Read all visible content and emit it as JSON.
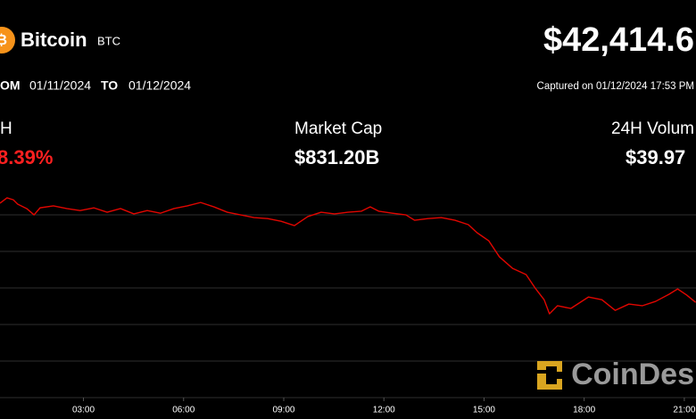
{
  "header": {
    "name": "Bitcoin",
    "symbol": "BTC",
    "price": "$42,414.6",
    "from_label": "OM",
    "from_date": "01/11/2024",
    "to_label": "TO",
    "to_date": "01/12/2024",
    "captured": "Captured on 01/12/2024 17:53 PM"
  },
  "stats": [
    {
      "label": "H",
      "value": "8.39%"
    },
    {
      "label": "Market Cap",
      "value": "$831.20B"
    },
    {
      "label": "24H Volum",
      "value": "$39.97"
    }
  ],
  "brand": "CoinDes",
  "chart_data": {
    "type": "line",
    "color": "#e10600",
    "x": [
      0.5,
      0.71,
      0.9,
      1.03,
      1.3,
      1.52,
      1.7,
      2.1,
      2.5,
      2.9,
      3.31,
      3.71,
      4.11,
      4.51,
      4.91,
      5.31,
      5.71,
      6.11,
      6.51,
      6.91,
      7.31,
      7.71,
      8.11,
      8.52,
      8.92,
      9.32,
      9.72,
      10.12,
      10.52,
      10.92,
      11.32,
      11.59,
      11.85,
      12.26,
      12.66,
      12.92,
      13.32,
      13.72,
      14.13,
      14.53,
      14.79,
      15.14,
      15.46,
      15.86,
      16.26,
      16.53,
      16.8,
      16.96,
      17.2,
      17.6,
      18.13,
      18.53,
      18.93,
      19.34,
      19.74,
      20.14,
      20.54,
      20.8,
      21.07,
      21.34
    ],
    "values": [
      46480,
      46700,
      46620,
      46440,
      46260,
      46000,
      46290,
      46370,
      46260,
      46180,
      46290,
      46110,
      46260,
      46040,
      46180,
      46070,
      46260,
      46370,
      46510,
      46330,
      46110,
      46000,
      45890,
      45850,
      45740,
      45560,
      45930,
      46110,
      46040,
      46110,
      46150,
      46330,
      46150,
      46070,
      46000,
      45780,
      45850,
      45890,
      45780,
      45600,
      45270,
      44940,
      44280,
      43800,
      43550,
      43000,
      42520,
      41940,
      42270,
      42160,
      42630,
      42520,
      42080,
      42340,
      42270,
      42450,
      42740,
      42960,
      42710,
      42410
    ],
    "xlim": [
      0.5,
      21.35
    ],
    "xticks": [
      {
        "value": 3,
        "label": "03:00"
      },
      {
        "value": 6,
        "label": "06:00"
      },
      {
        "value": 9,
        "label": "09:00"
      },
      {
        "value": 12,
        "label": "12:00"
      },
      {
        "value": 15,
        "label": "15:00"
      },
      {
        "value": 18,
        "label": "18:00"
      },
      {
        "value": 21,
        "label": "21:00"
      }
    ],
    "ylim": [
      38500,
      47400
    ],
    "yticks": [
      38500,
      40000,
      41500,
      43000,
      44500,
      46000
    ],
    "grid": true
  }
}
